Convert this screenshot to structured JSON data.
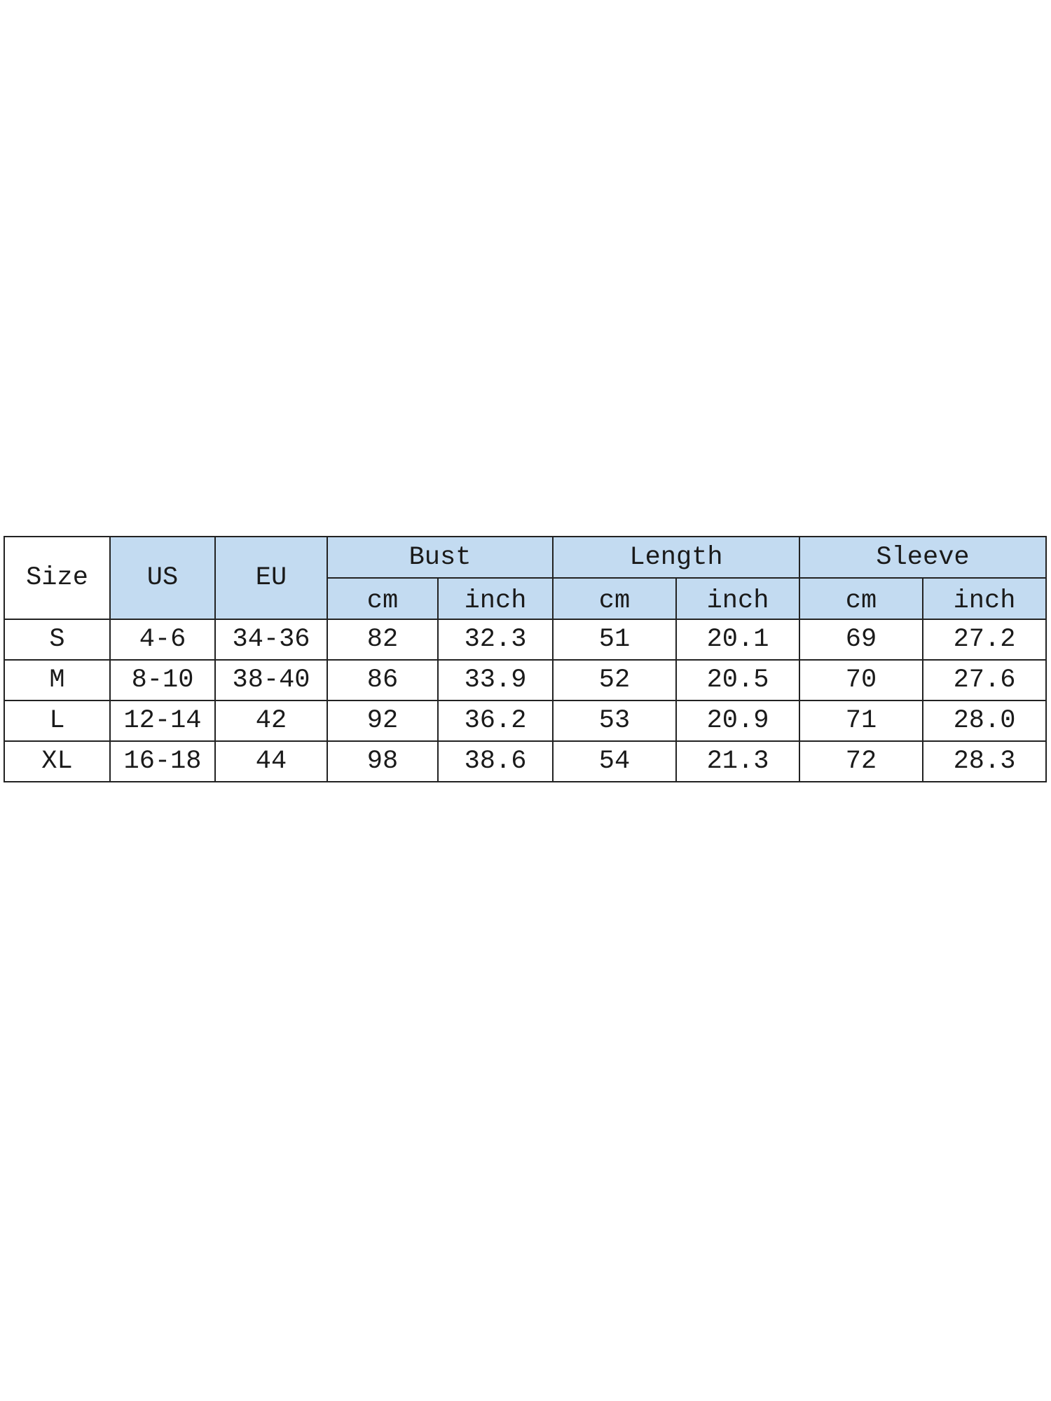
{
  "header_color": "#c3dbf1",
  "table": {
    "headers": {
      "size": "Size",
      "us": "US",
      "eu": "EU",
      "groups": [
        "Bust",
        "Length",
        "Sleeve"
      ],
      "units": [
        "cm",
        "inch",
        "cm",
        "inch",
        "cm",
        "inch"
      ]
    },
    "rows": [
      [
        "S",
        "4-6",
        "34-36",
        "82",
        "32.3",
        "51",
        "20.1",
        "69",
        "27.2"
      ],
      [
        "M",
        "8-10",
        "38-40",
        "86",
        "33.9",
        "52",
        "20.5",
        "70",
        "27.6"
      ],
      [
        "L",
        "12-14",
        "42",
        "92",
        "36.2",
        "53",
        "20.9",
        "71",
        "28.0"
      ],
      [
        "XL",
        "16-18",
        "44",
        "98",
        "38.6",
        "54",
        "21.3",
        "72",
        "28.3"
      ]
    ]
  }
}
